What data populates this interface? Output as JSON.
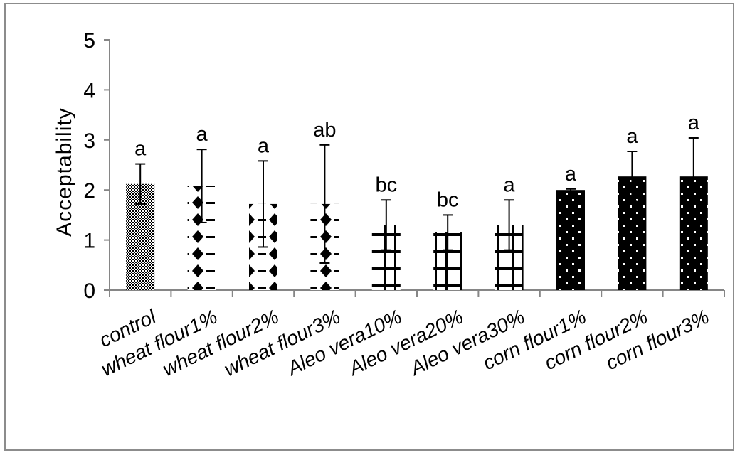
{
  "chart_data": {
    "type": "bar",
    "title": "",
    "xlabel": "",
    "ylabel": "Acceptability",
    "ylim": [
      0,
      5
    ],
    "yticks": [
      0,
      1,
      2,
      3,
      4,
      5
    ],
    "grid": false,
    "legend": "none",
    "categories": [
      "control",
      "wheat flour1%",
      "wheat flour2%",
      "wheat flour3%",
      "Aleo vera10%",
      "Aleo vera20%",
      "Aleo vera30%",
      "corn flour1%",
      "corn flour2%",
      "corn flour3%"
    ],
    "values": [
      2.12,
      2.08,
      1.72,
      1.72,
      1.3,
      1.15,
      1.3,
      2.0,
      2.27,
      2.27
    ],
    "error": [
      0.4,
      0.73,
      0.86,
      1.18,
      0.5,
      0.35,
      0.5,
      0.02,
      0.5,
      0.77
    ],
    "significance": [
      "a",
      "a",
      "a",
      "ab",
      "bc",
      "bc",
      "a",
      "a",
      "a",
      "a"
    ],
    "patterns": [
      "checker",
      "diamond",
      "diamond",
      "diamond",
      "grid",
      "grid",
      "grid",
      "dots",
      "dots",
      "dots"
    ]
  }
}
